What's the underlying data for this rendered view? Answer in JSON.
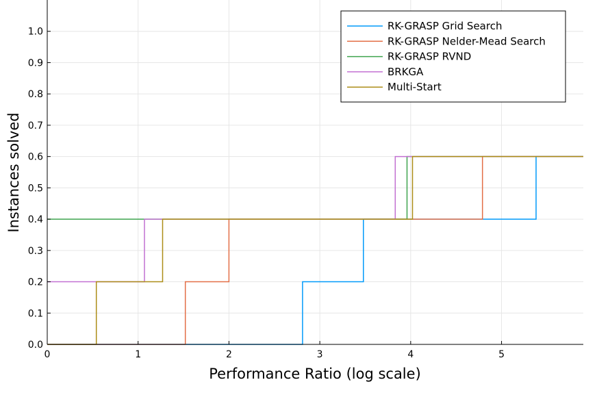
{
  "chart_data": {
    "type": "line",
    "step": true,
    "xlabel": "Performance Ratio (log scale)",
    "ylabel": "Instances solved",
    "xlim": [
      0,
      5.9
    ],
    "ylim": [
      0,
      1.1
    ],
    "x_ticks": [
      0,
      1,
      2,
      3,
      4,
      5
    ],
    "y_ticks": [
      0.0,
      0.1,
      0.2,
      0.3,
      0.4,
      0.5,
      0.6,
      0.7,
      0.8,
      0.9,
      1.0
    ],
    "grid": true,
    "legend_position": "top-right",
    "series": [
      {
        "name": "RK-GRASP Grid Search",
        "color": "#009AFA",
        "points": [
          [
            0,
            0.0
          ],
          [
            2.81,
            0.0
          ],
          [
            2.81,
            0.2
          ],
          [
            3.48,
            0.2
          ],
          [
            3.48,
            0.4
          ],
          [
            5.38,
            0.4
          ],
          [
            5.38,
            0.6
          ],
          [
            5.9,
            0.6
          ]
        ]
      },
      {
        "name": "RK-GRASP Nelder-Mead Search",
        "color": "#E36F47",
        "points": [
          [
            0,
            0.0
          ],
          [
            1.52,
            0.0
          ],
          [
            1.52,
            0.2
          ],
          [
            2.0,
            0.2
          ],
          [
            2.0,
            0.4
          ],
          [
            4.79,
            0.4
          ],
          [
            4.79,
            0.6
          ],
          [
            5.9,
            0.6
          ]
        ]
      },
      {
        "name": "RK-GRASP RVND",
        "color": "#3EA44E",
        "points": [
          [
            0,
            0.4
          ],
          [
            3.96,
            0.4
          ],
          [
            3.96,
            0.6
          ],
          [
            5.9,
            0.6
          ]
        ]
      },
      {
        "name": "BRKGA",
        "color": "#C271D2",
        "points": [
          [
            0,
            0.2
          ],
          [
            1.07,
            0.2
          ],
          [
            1.07,
            0.4
          ],
          [
            3.83,
            0.4
          ],
          [
            3.83,
            0.6
          ],
          [
            5.9,
            0.6
          ]
        ]
      },
      {
        "name": "Multi-Start",
        "color": "#AC8D18",
        "points": [
          [
            0,
            0.0
          ],
          [
            0.54,
            0.0
          ],
          [
            0.54,
            0.2
          ],
          [
            1.27,
            0.2
          ],
          [
            1.27,
            0.4
          ],
          [
            4.02,
            0.4
          ],
          [
            4.02,
            0.6
          ],
          [
            5.9,
            0.6
          ]
        ]
      }
    ]
  }
}
